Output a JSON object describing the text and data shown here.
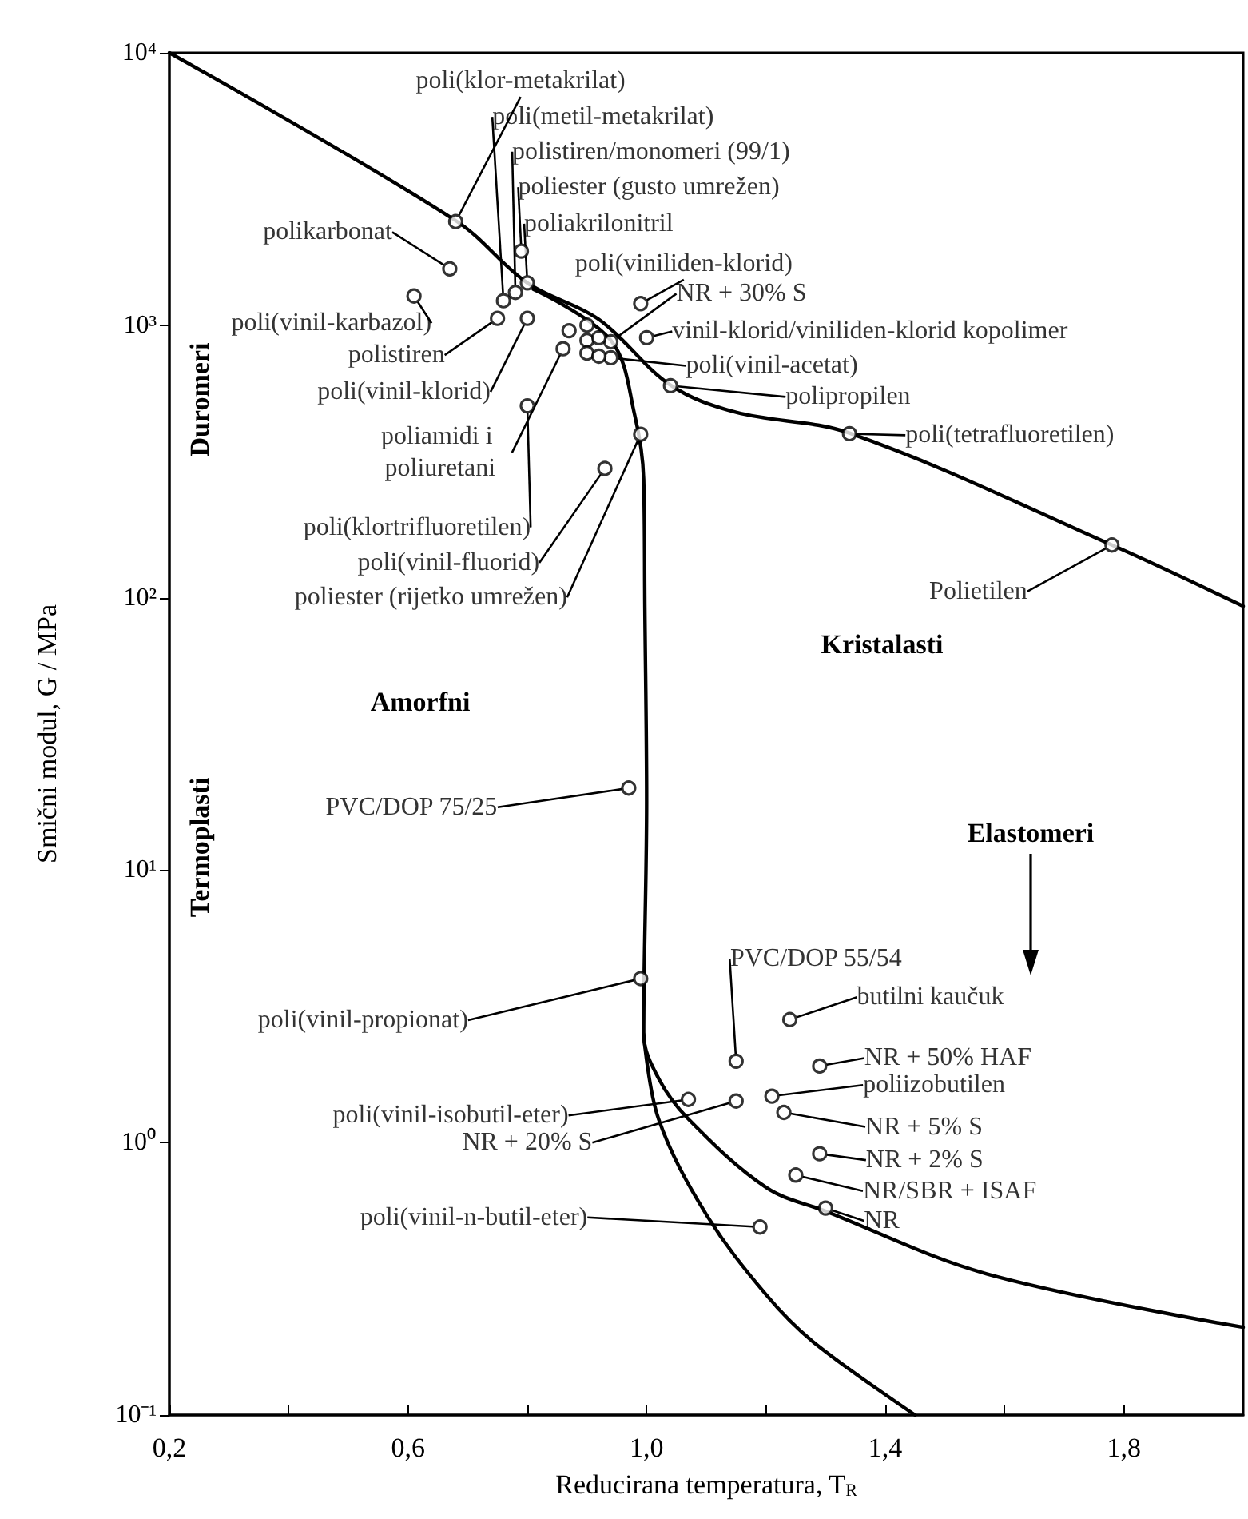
{
  "chart_data": {
    "type": "scatter",
    "xlabel": "Reducirana temperatura, T$_{R}$",
    "ylabel": "Smični modul, G / MPa",
    "xlim": [
      0.2,
      2.0
    ],
    "xticks": [
      {
        "value": 0.2,
        "label": "0,2"
      },
      {
        "value": 0.4,
        "label": null
      },
      {
        "value": 0.6,
        "label": "0,6"
      },
      {
        "value": 0.8,
        "label": null
      },
      {
        "value": 1.0,
        "label": "1,0"
      },
      {
        "value": 1.2,
        "label": null
      },
      {
        "value": 1.4,
        "label": "1,4"
      },
      {
        "value": 1.6,
        "label": null
      },
      {
        "value": 1.8,
        "label": "1,8"
      }
    ],
    "ylim": [
      0.1,
      10000
    ],
    "yticks": [
      {
        "value": 0.1,
        "label": "10⁻¹"
      },
      {
        "value": 1,
        "label": "10⁰"
      },
      {
        "value": 10,
        "label": "10¹"
      },
      {
        "value": 100,
        "label": "10²"
      },
      {
        "value": 1000,
        "label": "10³"
      },
      {
        "value": 10000,
        "label": "10⁴"
      }
    ],
    "log": "y",
    "series": [
      {
        "type": "scatter",
        "color": "#000000",
        "marker": "circle",
        "x": [
          0.68,
          0.76,
          0.78,
          0.79,
          0.8,
          0.99,
          0.94,
          1.0,
          0.94,
          1.04,
          1.34,
          1.78,
          0.67,
          0.61,
          0.75,
          0.8,
          0.86,
          0.8,
          0.93,
          0.99,
          0.97,
          0.99,
          1.07,
          1.15,
          1.19,
          1.15,
          1.24,
          1.29,
          1.21,
          1.23,
          1.29,
          1.25,
          1.3,
          0.87,
          0.9,
          0.9,
          0.92,
          0.9,
          0.92
        ],
        "values": [
          2400,
          1230,
          1320,
          1870,
          1430,
          1200,
          870,
          900,
          760,
          600,
          400,
          156,
          1610,
          1280,
          1060,
          1060,
          820,
          506,
          298,
          398,
          20,
          4.0,
          1.44,
          1.42,
          0.49,
          1.99,
          2.83,
          1.91,
          1.48,
          1.29,
          0.91,
          0.76,
          0.575,
          955,
          1000,
          880,
          900,
          790,
          770
        ]
      },
      {
        "type": "line",
        "color": "#000000",
        "marker": "none",
        "line_style": "solid",
        "x": [
          0.2,
          0.68,
          0.8,
          0.92,
          1.04,
          1.15,
          1.34,
          1.78,
          2.0
        ],
        "values": [
          10000,
          2420,
          1430,
          1050,
          603,
          479,
          402,
          156,
          93
        ]
      },
      {
        "type": "line",
        "color": "#000000",
        "marker": "none",
        "line_style": "solid",
        "x": [
          0.81,
          0.94,
          0.98,
          0.995,
          0.997,
          1.0,
          0.995,
          1.02,
          1.07,
          1.2,
          1.3,
          1.57,
          2.0
        ],
        "values": [
          1355,
          880,
          468,
          272,
          92,
          18,
          2.5,
          1.72,
          1.22,
          0.685,
          0.56,
          0.33,
          0.21
        ]
      },
      {
        "type": "line",
        "color": "#000000",
        "marker": "none",
        "line_style": "solid",
        "x": [
          0.995,
          1.02,
          1.1,
          1.2,
          1.28,
          1.45
        ],
        "values": [
          2.5,
          1.22,
          0.545,
          0.277,
          0.185,
          0.1
        ]
      }
    ],
    "annotations": [
      {
        "text": "poli(klor-metakrilat)",
        "x": 0.68,
        "y": 2400
      },
      {
        "text": "poli(metil-metakrilat)",
        "x": 0.76,
        "y": 1230
      },
      {
        "text": "polistiren/monomeri (99/1)",
        "x": 0.78,
        "y": 1320
      },
      {
        "text": "poliester (gusto umrežen)",
        "x": 0.79,
        "y": 1870
      },
      {
        "text": "poliakrilonitril",
        "x": 0.8,
        "y": 1430
      },
      {
        "text": "poli(viniliden-klorid)",
        "x": 0.99,
        "y": 1200
      },
      {
        "text": "NR + 30% S",
        "x": 0.94,
        "y": 870
      },
      {
        "text": "vinil-klorid/viniliden-klorid kopolimer",
        "x": 1.0,
        "y": 900
      },
      {
        "text": "poli(vinil-acetat)",
        "x": 0.94,
        "y": 760
      },
      {
        "text": "polipropilen",
        "x": 1.04,
        "y": 600
      },
      {
        "text": "poli(tetrafluoretilen)",
        "x": 1.34,
        "y": 400
      },
      {
        "text": "Polietilen",
        "x": 1.78,
        "y": 156
      },
      {
        "text": "polikarbonat",
        "x": 0.67,
        "y": 1610
      },
      {
        "text": "poli(vinil-karbazol)",
        "x": 0.61,
        "y": 1280
      },
      {
        "text": "polistiren",
        "x": 0.75,
        "y": 1060
      },
      {
        "text": "poli(vinil-klorid)",
        "x": 0.8,
        "y": 1060
      },
      {
        "text": "poliamidi i poliuretani",
        "x": 0.86,
        "y": 820
      },
      {
        "text": "poli(klortrifluoretilen)",
        "x": 0.8,
        "y": 506
      },
      {
        "text": "poli(vinil-fluorid)",
        "x": 0.93,
        "y": 298
      },
      {
        "text": "poliester (rijetko umrežen)",
        "x": 0.99,
        "y": 398
      },
      {
        "text": "PVC/DOP 75/25",
        "x": 0.97,
        "y": 20
      },
      {
        "text": "poli(vinil-propionat)",
        "x": 0.99,
        "y": 4.0
      },
      {
        "text": "poli(vinil-isobutil-eter)",
        "x": 1.07,
        "y": 1.44
      },
      {
        "text": "NR + 20% S",
        "x": 1.15,
        "y": 1.42
      },
      {
        "text": "poli(vinil-n-butil-eter)",
        "x": 1.19,
        "y": 0.49
      },
      {
        "text": "PVC/DOP 55/54",
        "x": 1.15,
        "y": 1.99
      },
      {
        "text": "butilni kaučuk",
        "x": 1.24,
        "y": 2.83
      },
      {
        "text": "NR + 50% HAF",
        "x": 1.29,
        "y": 1.91
      },
      {
        "text": "poliizobutilen",
        "x": 1.21,
        "y": 1.48
      },
      {
        "text": "NR + 5% S",
        "x": 1.23,
        "y": 1.29
      },
      {
        "text": "NR + 2% S",
        "x": 1.29,
        "y": 0.91
      },
      {
        "text": "NR/SBR + ISAF",
        "x": 1.25,
        "y": 0.76
      },
      {
        "text": "NR",
        "x": 1.3,
        "y": 0.575
      },
      "Duromeri",
      "Termoplasti",
      "Amorfni",
      "Kristalasti",
      "Elastomeri"
    ]
  }
}
